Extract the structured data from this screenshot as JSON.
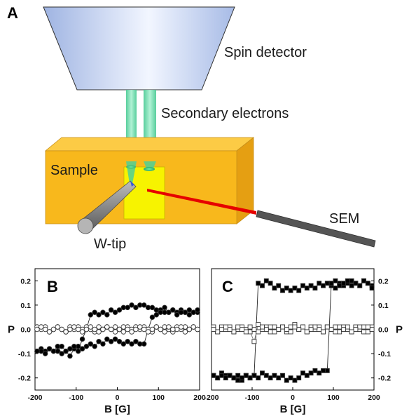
{
  "figure": {
    "panel_a": {
      "letter": "A",
      "labels": {
        "spin_detector": "Spin detector",
        "secondary_electrons": "Secondary electrons",
        "sample": "Sample",
        "w_tip": "W-tip",
        "sem": "SEM"
      },
      "colors": {
        "detector": "#b7c9ec",
        "beam": "#5fd6a6",
        "sample_front": "#f8b81c",
        "sample_top": "#fccb45",
        "sample_side": "#e59f12",
        "scan_area": "#f7f300",
        "sem_beam": "#e60000",
        "tip": "#8c8c8c"
      }
    }
  },
  "chart_data": [
    {
      "type": "scatter",
      "panel": "B",
      "xlabel": "B [G]",
      "ylabel": "P",
      "xlim": [
        -200,
        200
      ],
      "ylim": [
        -0.25,
        0.25
      ],
      "xticks": [
        -200,
        -100,
        0,
        100,
        200
      ],
      "yticks": [
        -0.2,
        -0.1,
        0.0,
        0.1,
        0.2
      ],
      "ytick_labels": [
        "-0.2",
        "-0.1",
        "0.0",
        "0.1",
        "0.2"
      ],
      "yaxis_side": "left",
      "series": [
        {
          "marker": "filled-circle",
          "connected": true,
          "x": [
            -195,
            -185,
            -175,
            -165,
            -155,
            -145,
            -135,
            -125,
            -115,
            -105,
            -95,
            -85,
            -75,
            -65,
            -55,
            -45,
            -35,
            -25,
            -15,
            -5,
            5,
            15,
            25,
            35,
            45,
            55,
            65,
            75,
            85,
            95,
            105,
            115,
            125,
            135,
            145,
            155,
            165,
            175,
            185,
            195
          ],
          "y": [
            -0.09,
            -0.08,
            -0.09,
            -0.08,
            -0.09,
            -0.07,
            -0.1,
            -0.09,
            -0.11,
            -0.08,
            -0.09,
            -0.04,
            0.0,
            0.06,
            0.07,
            0.06,
            0.07,
            0.06,
            0.08,
            0.07,
            0.08,
            0.09,
            0.09,
            0.1,
            0.09,
            0.1,
            0.1,
            0.09,
            0.09,
            0.08,
            0.08,
            0.09,
            0.07,
            0.08,
            0.07,
            0.08,
            0.07,
            0.06,
            0.07,
            0.07
          ]
        },
        {
          "marker": "filled-circle",
          "connected": true,
          "x": [
            195,
            185,
            175,
            165,
            155,
            145,
            135,
            125,
            115,
            105,
            95,
            85,
            75,
            65,
            55,
            45,
            35,
            25,
            15,
            5,
            -5,
            -15,
            -25,
            -35,
            -45,
            -55,
            -65,
            -75,
            -85,
            -95,
            -105,
            -115,
            -125,
            -135,
            -145,
            -155,
            -165,
            -175,
            -185,
            -195
          ],
          "y": [
            0.08,
            0.07,
            0.08,
            0.07,
            0.07,
            0.06,
            0.08,
            0.07,
            0.07,
            0.07,
            0.06,
            0.05,
            0.0,
            -0.06,
            -0.06,
            -0.05,
            -0.06,
            -0.05,
            -0.06,
            -0.05,
            -0.04,
            -0.05,
            -0.04,
            -0.06,
            -0.05,
            -0.07,
            -0.06,
            -0.07,
            -0.08,
            -0.07,
            -0.07,
            -0.08,
            -0.09,
            -0.07,
            -0.09,
            -0.09,
            -0.08,
            -0.1,
            -0.09,
            -0.09
          ]
        },
        {
          "marker": "open-circle",
          "connected": true,
          "x": [
            -195,
            -185,
            -175,
            -165,
            -155,
            -145,
            -135,
            -125,
            -115,
            -105,
            -95,
            -85,
            -75,
            -65,
            -55,
            -45,
            -35,
            -25,
            -15,
            -5,
            5,
            15,
            25,
            35,
            45,
            55,
            65,
            75,
            85,
            95,
            105,
            115,
            125,
            135,
            145,
            155,
            165,
            175,
            185,
            195
          ],
          "y": [
            0.01,
            0.0,
            0.01,
            -0.01,
            0.0,
            0.01,
            0.0,
            -0.01,
            0.01,
            0.0,
            0.01,
            0.0,
            0.01,
            0.0,
            -0.01,
            0.01,
            0.0,
            0.01,
            0.0,
            0.01,
            0.0,
            -0.01,
            0.01,
            0.0,
            0.01,
            0.0,
            0.01,
            0.0,
            -0.01,
            0.01,
            0.0,
            0.01,
            0.0,
            -0.01,
            0.01,
            0.0,
            0.01,
            0.0,
            0.01,
            0.0
          ]
        },
        {
          "marker": "open-circle",
          "connected": true,
          "x": [
            195,
            185,
            175,
            165,
            155,
            145,
            135,
            125,
            115,
            105,
            95,
            85,
            75,
            65,
            55,
            45,
            35,
            25,
            15,
            5,
            -5,
            -15,
            -25,
            -35,
            -45,
            -55,
            -65,
            -75,
            -85,
            -95,
            -105,
            -115,
            -125,
            -135,
            -145,
            -155,
            -165,
            -175,
            -185,
            -195
          ],
          "y": [
            0.0,
            0.01,
            0.0,
            -0.01,
            0.01,
            0.0,
            0.0,
            0.01,
            -0.01,
            0.0,
            0.01,
            0.0,
            -0.01,
            0.0,
            0.01,
            0.0,
            -0.01,
            0.0,
            0.01,
            0.0,
            -0.01,
            0.0,
            0.01,
            0.0,
            -0.01,
            0.0,
            0.01,
            0.0,
            -0.01,
            0.0,
            0.01,
            0.0,
            -0.01,
            0.0,
            0.01,
            0.0,
            -0.01,
            0.0,
            0.01,
            0.0
          ]
        }
      ]
    },
    {
      "type": "scatter",
      "panel": "C",
      "xlabel": "B [G]",
      "ylabel": "P",
      "xlim": [
        -200,
        200
      ],
      "ylim": [
        -0.25,
        0.25
      ],
      "xticks": [
        -200,
        -100,
        0,
        100,
        200
      ],
      "yticks": [
        -0.2,
        -0.1,
        0.0,
        0.1,
        0.2
      ],
      "ytick_labels": [
        "-0.2",
        "-0.1",
        "0.0",
        "0.1",
        "0.2"
      ],
      "yaxis_side": "right",
      "series": [
        {
          "marker": "filled-square",
          "connected": true,
          "x": [
            -195,
            -185,
            -175,
            -165,
            -155,
            -145,
            -135,
            -125,
            -115,
            -105,
            -95,
            -85,
            -75,
            -65,
            -55,
            -45,
            -35,
            -25,
            -15,
            -5,
            5,
            15,
            25,
            35,
            45,
            55,
            65,
            75,
            85,
            95,
            105,
            115,
            125,
            135,
            145,
            155,
            165,
            175,
            185,
            195
          ],
          "y": [
            -0.19,
            -0.2,
            -0.18,
            -0.19,
            -0.19,
            -0.2,
            -0.19,
            -0.21,
            -0.19,
            -0.2,
            -0.19,
            0.19,
            0.18,
            0.2,
            0.19,
            0.17,
            0.18,
            0.16,
            0.17,
            0.16,
            0.17,
            0.16,
            0.18,
            0.17,
            0.18,
            0.17,
            0.19,
            0.18,
            0.19,
            0.18,
            0.2,
            0.19,
            0.18,
            0.19,
            0.2,
            0.19,
            0.18,
            0.2,
            0.19,
            0.18
          ]
        },
        {
          "marker": "filled-square",
          "connected": true,
          "x": [
            195,
            185,
            175,
            165,
            155,
            145,
            135,
            125,
            115,
            105,
            95,
            85,
            75,
            65,
            55,
            45,
            35,
            25,
            15,
            5,
            -5,
            -15,
            -25,
            -35,
            -45,
            -55,
            -65,
            -75,
            -85,
            -95,
            -105,
            -115,
            -125,
            -135,
            -145,
            -155,
            -165,
            -175,
            -185,
            -195
          ],
          "y": [
            0.17,
            0.19,
            0.2,
            0.18,
            0.19,
            0.18,
            0.2,
            0.19,
            0.18,
            0.17,
            0.19,
            -0.17,
            -0.17,
            -0.18,
            -0.17,
            -0.18,
            -0.19,
            -0.18,
            -0.2,
            -0.21,
            -0.2,
            -0.21,
            -0.19,
            -0.2,
            -0.19,
            -0.2,
            -0.19,
            -0.18,
            -0.2,
            -0.19,
            -0.2,
            -0.19,
            -0.2,
            -0.21,
            -0.2,
            -0.19,
            -0.2,
            -0.19,
            -0.2,
            -0.19
          ]
        },
        {
          "marker": "open-square",
          "connected": true,
          "x": [
            -195,
            -185,
            -175,
            -165,
            -155,
            -145,
            -135,
            -125,
            -115,
            -105,
            -95,
            -85,
            -75,
            -65,
            -55,
            -45,
            -35,
            -25,
            -15,
            -5,
            5,
            15,
            25,
            35,
            45,
            55,
            65,
            75,
            85,
            95,
            105,
            115,
            125,
            135,
            145,
            155,
            165,
            175,
            185,
            195
          ],
          "y": [
            0.01,
            -0.01,
            0.01,
            0.0,
            0.01,
            -0.01,
            0.0,
            0.01,
            0.0,
            -0.01,
            -0.05,
            0.02,
            0.0,
            0.01,
            -0.01,
            0.01,
            0.0,
            0.01,
            -0.01,
            0.01,
            0.02,
            0.0,
            0.01,
            -0.01,
            0.01,
            0.0,
            0.01,
            -0.01,
            0.01,
            0.0,
            0.01,
            -0.01,
            0.01,
            0.0,
            -0.01,
            0.01,
            0.0,
            0.01,
            -0.01,
            0.01
          ]
        },
        {
          "marker": "open-square",
          "connected": true,
          "x": [
            195,
            185,
            175,
            165,
            155,
            145,
            135,
            125,
            115,
            105,
            95,
            85,
            75,
            65,
            55,
            45,
            35,
            25,
            15,
            5,
            -5,
            -15,
            -25,
            -35,
            -45,
            -55,
            -65,
            -75,
            -85,
            -95,
            -105,
            -115,
            -125,
            -135,
            -145,
            -155,
            -165,
            -175,
            -185,
            -195
          ],
          "y": [
            0.0,
            0.01,
            -0.01,
            0.01,
            0.0,
            -0.01,
            0.01,
            0.0,
            0.01,
            -0.01,
            0.0,
            0.01,
            -0.01,
            0.0,
            0.01,
            0.0,
            -0.01,
            0.01,
            0.0,
            0.01,
            -0.01,
            0.0,
            0.01,
            0.0,
            -0.01,
            0.01,
            0.0,
            0.01,
            -0.01,
            0.0,
            0.01,
            -0.01,
            0.0,
            0.01,
            -0.01,
            0.0,
            0.01,
            0.0,
            -0.01,
            0.0
          ]
        }
      ]
    }
  ]
}
